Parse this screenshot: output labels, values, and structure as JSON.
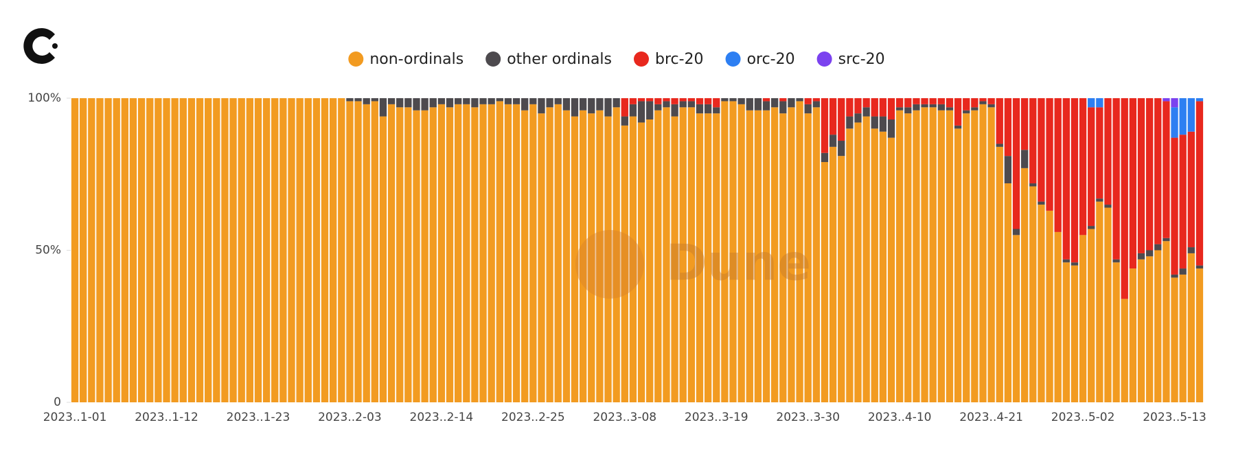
{
  "chart_data": {
    "type": "stacked_bar_percent",
    "watermark": "Dune",
    "categories": [
      "2023..1-01",
      null,
      null,
      null,
      null,
      null,
      null,
      null,
      null,
      null,
      null,
      "2023..1-12",
      null,
      null,
      null,
      null,
      null,
      null,
      null,
      null,
      null,
      null,
      "2023..1-23",
      null,
      null,
      null,
      null,
      null,
      null,
      null,
      null,
      null,
      null,
      "2023..2-03",
      null,
      null,
      null,
      null,
      null,
      null,
      null,
      null,
      null,
      null,
      "2023..2-14",
      null,
      null,
      null,
      null,
      null,
      null,
      null,
      null,
      null,
      null,
      "2023..2-25",
      null,
      null,
      null,
      null,
      null,
      null,
      null,
      null,
      null,
      null,
      "2023..3-08",
      null,
      null,
      null,
      null,
      null,
      null,
      null,
      null,
      null,
      null,
      "2023..3-19",
      null,
      null,
      null,
      null,
      null,
      null,
      null,
      null,
      null,
      null,
      "2023..3-30",
      null,
      null,
      null,
      null,
      null,
      null,
      null,
      null,
      null,
      null,
      "2023..4-10",
      null,
      null,
      null,
      null,
      null,
      null,
      null,
      null,
      null,
      null,
      "2023..4-21",
      null,
      null,
      null,
      null,
      null,
      null,
      null,
      null,
      null,
      null,
      "2023..5-02",
      null,
      null,
      null,
      null,
      null,
      null,
      null,
      null,
      null,
      null,
      "2023..5-13",
      null,
      null,
      null
    ],
    "series": [
      {
        "name": "non-ordinals",
        "color": "#f29b21",
        "values": [
          100,
          100,
          100,
          100,
          100,
          100,
          100,
          100,
          100,
          100,
          100,
          100,
          100,
          100,
          100,
          100,
          100,
          100,
          100,
          100,
          100,
          100,
          100,
          100,
          100,
          100,
          100,
          100,
          100,
          100,
          100,
          100,
          100,
          99,
          99,
          98,
          99,
          94,
          98,
          97,
          97,
          96,
          96,
          97,
          98,
          97,
          98,
          98,
          97,
          98,
          98,
          99,
          98,
          98,
          96,
          98,
          95,
          97,
          98,
          96,
          94,
          96,
          95,
          96,
          94,
          97,
          91,
          94,
          92,
          93,
          96,
          97,
          94,
          97,
          97,
          95,
          95,
          95,
          99,
          99,
          98,
          96,
          96,
          96,
          97,
          95,
          97,
          99,
          95,
          97,
          79,
          84,
          81,
          90,
          92,
          94,
          90,
          89,
          87,
          96,
          95,
          96,
          97,
          97,
          96,
          96,
          90,
          95,
          96,
          98,
          97,
          84,
          72,
          55,
          77,
          71,
          65,
          63,
          56,
          46,
          45,
          55,
          57,
          66,
          64,
          46,
          34,
          44,
          47,
          48,
          50,
          53,
          41,
          42,
          49,
          44
        ]
      },
      {
        "name": "other ordinals",
        "color": "#4d4a4e",
        "values": [
          0,
          0,
          0,
          0,
          0,
          0,
          0,
          0,
          0,
          0,
          0,
          0,
          0,
          0,
          0,
          0,
          0,
          0,
          0,
          0,
          0,
          0,
          0,
          0,
          0,
          0,
          0,
          0,
          0,
          0,
          0,
          0,
          0,
          1,
          1,
          2,
          1,
          6,
          2,
          3,
          3,
          4,
          4,
          3,
          2,
          3,
          2,
          2,
          3,
          2,
          2,
          1,
          2,
          2,
          4,
          2,
          5,
          3,
          2,
          4,
          6,
          4,
          5,
          4,
          6,
          3,
          3,
          4,
          7,
          6,
          2,
          2,
          4,
          2,
          2,
          3,
          3,
          2,
          1,
          1,
          2,
          4,
          4,
          3,
          3,
          4,
          3,
          1,
          3,
          2,
          3,
          4,
          5,
          4,
          3,
          3,
          4,
          5,
          6,
          1,
          2,
          2,
          1,
          1,
          2,
          1,
          1,
          1,
          1,
          1,
          1,
          1,
          9,
          2,
          6,
          1,
          1,
          0,
          0,
          1,
          1,
          0,
          1,
          1,
          1,
          1,
          0,
          0,
          2,
          2,
          2,
          1,
          1,
          2,
          2,
          1
        ]
      },
      {
        "name": "brc-20",
        "color": "#e8281e",
        "values": [
          0,
          0,
          0,
          0,
          0,
          0,
          0,
          0,
          0,
          0,
          0,
          0,
          0,
          0,
          0,
          0,
          0,
          0,
          0,
          0,
          0,
          0,
          0,
          0,
          0,
          0,
          0,
          0,
          0,
          0,
          0,
          0,
          0,
          0,
          0,
          0,
          0,
          0,
          0,
          0,
          0,
          0,
          0,
          0,
          0,
          0,
          0,
          0,
          0,
          0,
          0,
          0,
          0,
          0,
          0,
          0,
          0,
          0,
          0,
          0,
          0,
          0,
          0,
          0,
          0,
          0,
          6,
          2,
          1,
          1,
          2,
          1,
          2,
          1,
          1,
          2,
          2,
          3,
          0,
          0,
          0,
          0,
          0,
          1,
          0,
          1,
          0,
          0,
          2,
          1,
          18,
          12,
          14,
          6,
          5,
          3,
          6,
          6,
          7,
          3,
          3,
          2,
          2,
          2,
          2,
          3,
          9,
          4,
          3,
          1,
          2,
          15,
          19,
          43,
          17,
          28,
          34,
          37,
          44,
          53,
          54,
          45,
          39,
          30,
          35,
          53,
          66,
          56,
          51,
          50,
          48,
          45,
          45,
          44,
          38,
          54
        ]
      },
      {
        "name": "orc-20",
        "color": "#2d7ff2",
        "values": [
          0,
          0,
          0,
          0,
          0,
          0,
          0,
          0,
          0,
          0,
          0,
          0,
          0,
          0,
          0,
          0,
          0,
          0,
          0,
          0,
          0,
          0,
          0,
          0,
          0,
          0,
          0,
          0,
          0,
          0,
          0,
          0,
          0,
          0,
          0,
          0,
          0,
          0,
          0,
          0,
          0,
          0,
          0,
          0,
          0,
          0,
          0,
          0,
          0,
          0,
          0,
          0,
          0,
          0,
          0,
          0,
          0,
          0,
          0,
          0,
          0,
          0,
          0,
          0,
          0,
          0,
          0,
          0,
          0,
          0,
          0,
          0,
          0,
          0,
          0,
          0,
          0,
          0,
          0,
          0,
          0,
          0,
          0,
          0,
          0,
          0,
          0,
          0,
          0,
          0,
          0,
          0,
          0,
          0,
          0,
          0,
          0,
          0,
          0,
          0,
          0,
          0,
          0,
          0,
          0,
          0,
          0,
          0,
          0,
          0,
          0,
          0,
          0,
          0,
          0,
          0,
          0,
          0,
          0,
          0,
          0,
          0,
          3,
          3,
          0,
          0,
          0,
          0,
          0,
          0,
          0,
          0,
          10,
          12,
          11,
          1
        ]
      },
      {
        "name": "src-20",
        "color": "#7b42ef",
        "values": [
          0,
          0,
          0,
          0,
          0,
          0,
          0,
          0,
          0,
          0,
          0,
          0,
          0,
          0,
          0,
          0,
          0,
          0,
          0,
          0,
          0,
          0,
          0,
          0,
          0,
          0,
          0,
          0,
          0,
          0,
          0,
          0,
          0,
          0,
          0,
          0,
          0,
          0,
          0,
          0,
          0,
          0,
          0,
          0,
          0,
          0,
          0,
          0,
          0,
          0,
          0,
          0,
          0,
          0,
          0,
          0,
          0,
          0,
          0,
          0,
          0,
          0,
          0,
          0,
          0,
          0,
          0,
          0,
          0,
          0,
          0,
          0,
          0,
          0,
          0,
          0,
          0,
          0,
          0,
          0,
          0,
          0,
          0,
          0,
          0,
          0,
          0,
          0,
          0,
          0,
          0,
          0,
          0,
          0,
          0,
          0,
          0,
          0,
          0,
          0,
          0,
          0,
          0,
          0,
          0,
          0,
          0,
          0,
          0,
          0,
          0,
          0,
          0,
          0,
          0,
          0,
          0,
          0,
          0,
          0,
          0,
          0,
          0,
          0,
          0,
          0,
          0,
          0,
          0,
          0,
          0,
          1,
          3,
          0,
          0,
          0
        ]
      }
    ],
    "ylim": [
      0,
      100
    ],
    "yticks": [
      0,
      {
        "value": 50,
        "label": "50%"
      },
      {
        "value": 100,
        "label": "100%"
      }
    ],
    "grid": false,
    "legend": "top"
  }
}
